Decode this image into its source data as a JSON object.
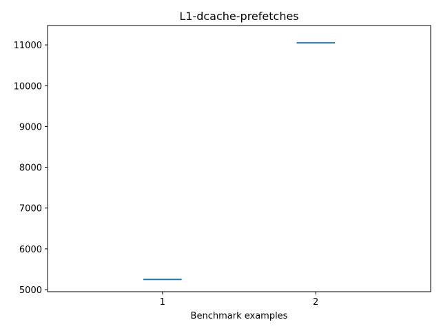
{
  "chart_data": {
    "type": "line",
    "title": "L1-dcache-prefetches",
    "xlabel": "Benchmark examples",
    "ylabel": "",
    "x_ticks": [
      "1",
      "2"
    ],
    "x_range": [
      0.25,
      2.75
    ],
    "y_ticks": [
      "5000",
      "6000",
      "7000",
      "8000",
      "9000",
      "10000",
      "11000"
    ],
    "ylim": [
      4950,
      11475
    ],
    "grid": false,
    "legend": "none",
    "series": [
      {
        "segments": [
          {
            "x": 1,
            "y": 5250,
            "halfwidth": 0.125
          },
          {
            "x": 2,
            "y": 11050,
            "halfwidth": 0.125
          }
        ],
        "color": "#1f77b4"
      }
    ]
  }
}
